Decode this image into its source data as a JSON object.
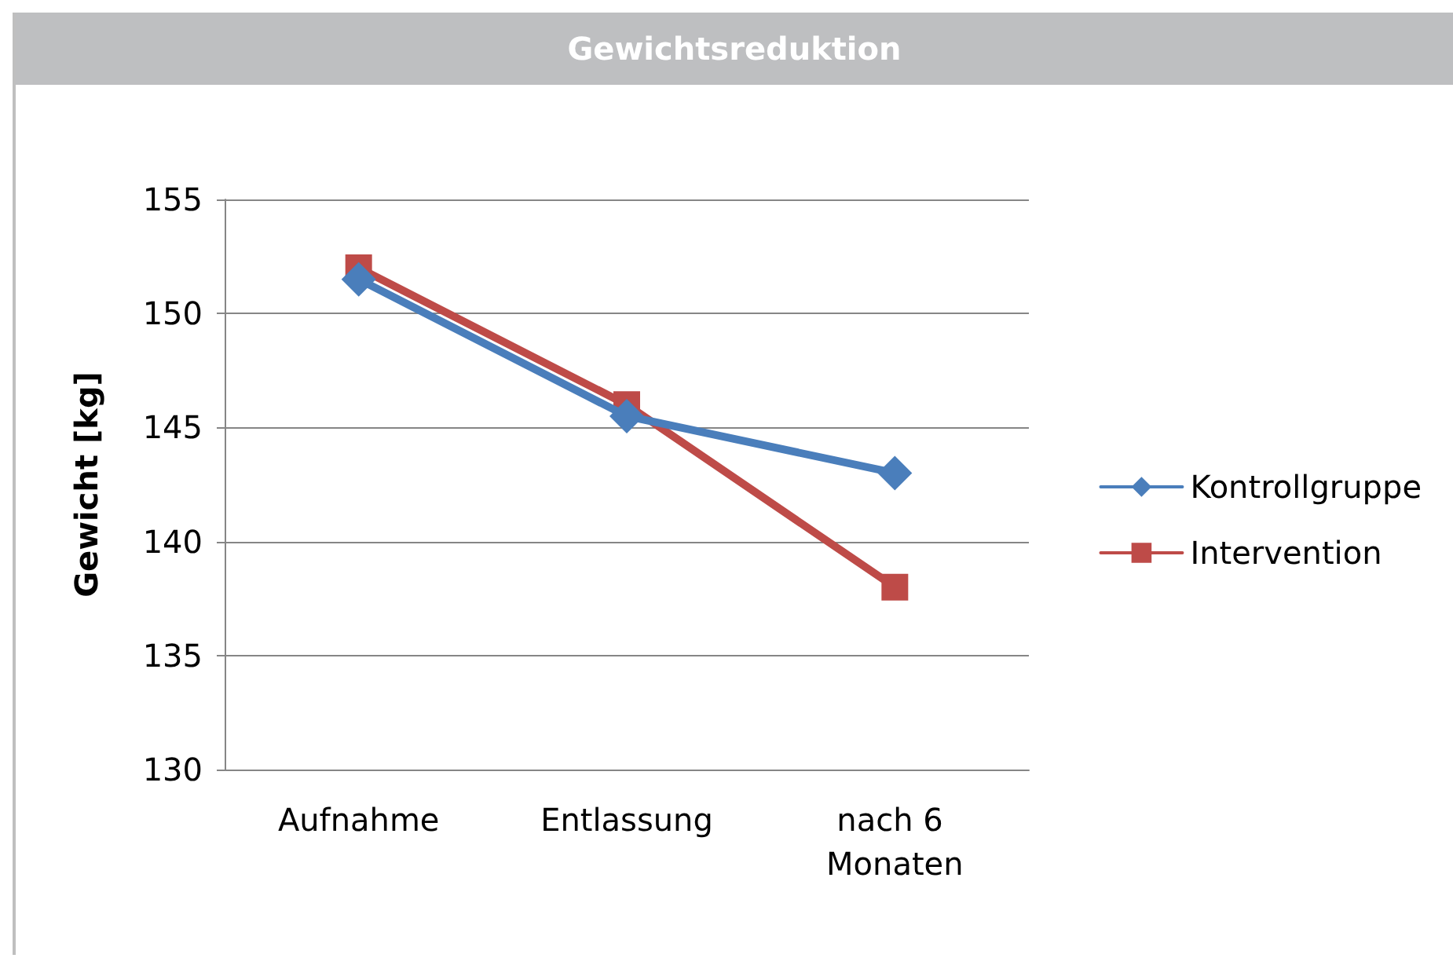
{
  "chart_data": {
    "type": "line",
    "title": "Gewichtsreduktion",
    "ylabel": "Gewicht [kg]",
    "categories": [
      "Aufnahme",
      "Entlassung",
      "nach 6 Monaten"
    ],
    "series": [
      {
        "name": "Kontrollgruppe",
        "color": "#4a7ebb",
        "values": [
          151.5,
          145.5,
          143
        ],
        "marker": "diamond"
      },
      {
        "name": "Intervention",
        "color": "#be4b48",
        "values": [
          152,
          146,
          138
        ],
        "marker": "square"
      }
    ],
    "ylim": [
      130,
      155
    ],
    "yticks": [
      130,
      135,
      140,
      145,
      150,
      155
    ],
    "grid": "y",
    "legend": "right",
    "line_style": "solid"
  }
}
